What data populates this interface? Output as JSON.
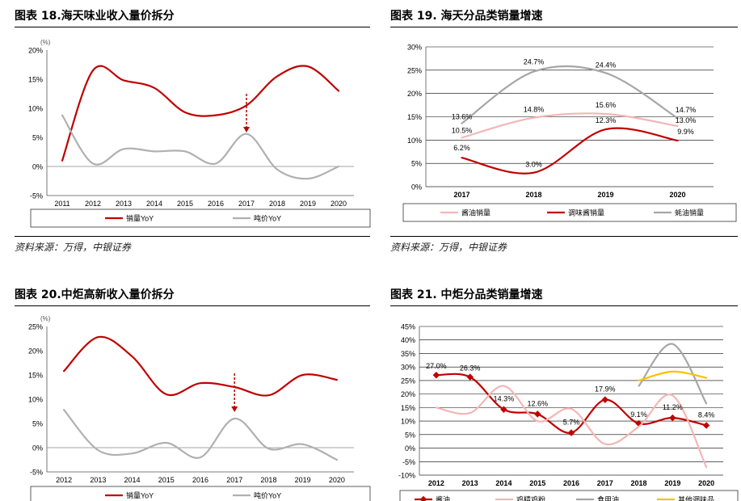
{
  "source_text": "资料来源：万得，中银证券",
  "chart_data": [
    {
      "id": "c1",
      "type": "line",
      "title": "图表 18.海天味业收入量价拆分",
      "unit_label": "(%)",
      "categories": [
        "2011",
        "2012",
        "2013",
        "2014",
        "2015",
        "2016",
        "2017",
        "2018",
        "2019",
        "2020"
      ],
      "y_ticks": [
        "20%",
        "15%",
        "10%",
        "5%",
        "0%",
        "-5%"
      ],
      "ylim": [
        -5,
        20
      ],
      "series": [
        {
          "name": "销量YoY",
          "color": "#c00000",
          "values": [
            1.0,
            16.5,
            14.8,
            13.5,
            9.3,
            8.8,
            10.5,
            15.5,
            17.2,
            13.0
          ]
        },
        {
          "name": "吨价YoY",
          "color": "#b0b0b0",
          "values": [
            8.8,
            0.5,
            3.0,
            2.6,
            2.6,
            0.5,
            5.6,
            -0.5,
            -2.1,
            0.0
          ]
        }
      ],
      "annotations": [
        {
          "type": "arrow",
          "x": "2017"
        }
      ]
    },
    {
      "id": "c2",
      "type": "line",
      "title": "图表 19. 海天分品类销量增速",
      "categories": [
        "2017",
        "2018",
        "2019",
        "2020"
      ],
      "y_ticks": [
        "30%",
        "25%",
        "20%",
        "15%",
        "10%",
        "5%",
        "0%"
      ],
      "ylim": [
        0,
        30
      ],
      "series": [
        {
          "name": "酱油销量",
          "color": "#f4b6b6",
          "values": [
            10.5,
            14.8,
            15.6,
            13.0
          ]
        },
        {
          "name": "调味酱销量",
          "color": "#c00000",
          "values": [
            6.2,
            3.0,
            12.3,
            9.9
          ]
        },
        {
          "name": "蚝油销量",
          "color": "#a6a6a6",
          "values": [
            13.6,
            24.7,
            24.4,
            14.7
          ]
        }
      ],
      "data_labels": [
        "13.6%",
        "10.5%",
        "6.2%",
        "24.7%",
        "14.8%",
        "3.0%",
        "24.4%",
        "15.6%",
        "12.3%",
        "14.7%",
        "13.0%",
        "9.9%"
      ]
    },
    {
      "id": "c3",
      "type": "line",
      "title": "图表 20.中炬高新收入量价拆分",
      "unit_label": "(%)",
      "categories": [
        "2012",
        "2013",
        "2014",
        "2015",
        "2016",
        "2017",
        "2018",
        "2019",
        "2020"
      ],
      "y_ticks": [
        "25%",
        "20%",
        "15%",
        "10%",
        "5%",
        "0%",
        "-5%"
      ],
      "ylim": [
        -5,
        25
      ],
      "series": [
        {
          "name": "销量YoY",
          "color": "#c00000",
          "values": [
            15.8,
            22.8,
            18.8,
            11.0,
            13.3,
            12.5,
            10.8,
            15.0,
            14.0
          ]
        },
        {
          "name": "吨价YoY",
          "color": "#b0b0b0",
          "values": [
            7.8,
            -0.5,
            -1.2,
            1.0,
            -2.0,
            6.0,
            -0.2,
            0.7,
            -2.5
          ]
        }
      ],
      "annotations": [
        {
          "type": "arrow",
          "x": "2017"
        }
      ]
    },
    {
      "id": "c4",
      "type": "line",
      "title": "图表 21. 中炬分品类销量增速",
      "categories": [
        "2012",
        "2013",
        "2014",
        "2015",
        "2016",
        "2017",
        "2018",
        "2019",
        "2020"
      ],
      "y_ticks": [
        "45%",
        "40%",
        "35%",
        "30%",
        "25%",
        "20%",
        "15%",
        "10%",
        "5%",
        "0%",
        "-5%",
        "-10%"
      ],
      "ylim": [
        -10,
        45
      ],
      "series": [
        {
          "name": "酱油",
          "color": "#c00000",
          "marker": true,
          "values": [
            27.0,
            26.3,
            14.3,
            12.6,
            5.7,
            17.9,
            9.1,
            11.2,
            8.4
          ]
        },
        {
          "name": "鸡精鸡粉",
          "color": "#f4b6b6",
          "values": [
            15.0,
            13.0,
            23.0,
            10.0,
            14.5,
            1.5,
            8.0,
            19.5,
            -7.0
          ]
        },
        {
          "name": "食用油",
          "color": "#a6a6a6",
          "values": [
            null,
            null,
            null,
            null,
            null,
            null,
            23.0,
            38.5,
            16.5
          ]
        },
        {
          "name": "其他调味品",
          "color": "#ffc000",
          "values": [
            null,
            null,
            null,
            null,
            null,
            null,
            25.0,
            28.3,
            26.0
          ]
        }
      ],
      "data_labels": [
        "27.0%",
        "26.3%",
        "14.3%",
        "12.6%",
        "5.7%",
        "17.9%",
        "9.1%",
        "11.2%",
        "8.4%"
      ]
    }
  ]
}
